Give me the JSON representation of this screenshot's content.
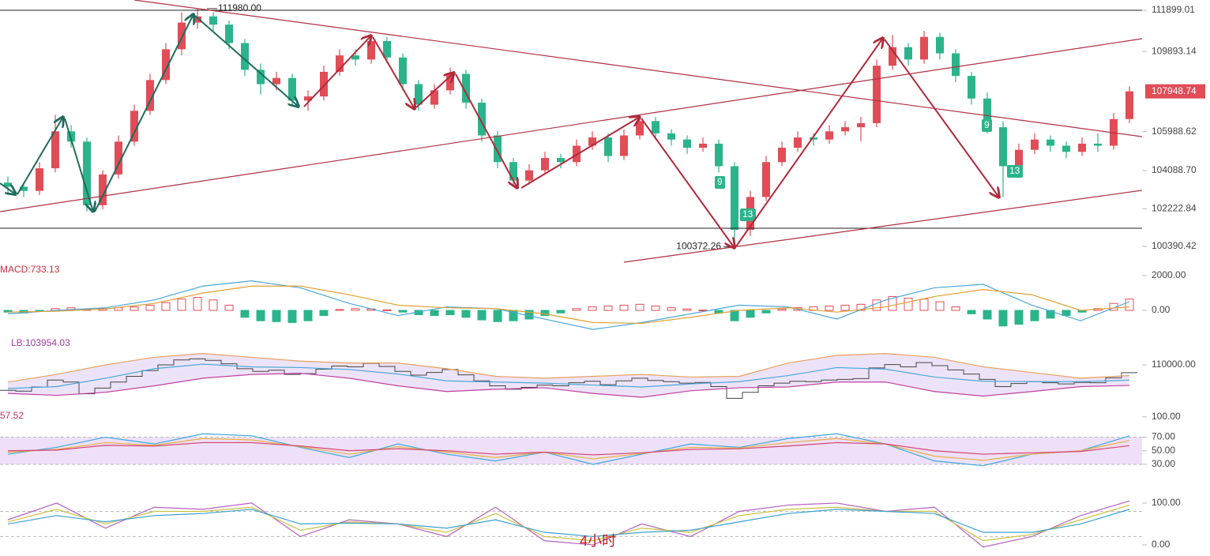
{
  "chart_data": [
    {
      "type": "candlestick",
      "up_color": "#e04d57",
      "down_color": "#2bb48b",
      "ylim": [
        99700,
        112400
      ],
      "yticks": [
        {
          "value": 111899.01,
          "label": "111899.01"
        },
        {
          "value": 109893.14,
          "label": "109893.14"
        },
        {
          "value": 105988.62,
          "label": "105988.62"
        },
        {
          "value": 104088.7,
          "label": "104088.70"
        },
        {
          "value": 102222.84,
          "label": "102222.84"
        },
        {
          "value": 100390.42,
          "label": "100390.42"
        }
      ],
      "last_price": 107948.74,
      "high_label": {
        "value": 111980,
        "label": "111980.00"
      },
      "low_label": {
        "value": 100372.26,
        "label": "100372.26"
      },
      "td_labels": [
        "9",
        "13",
        "9",
        "13"
      ],
      "ohlc": [
        [
          103500,
          103800,
          103000,
          103300
        ],
        [
          103300,
          103500,
          102800,
          103100
        ],
        [
          103100,
          104500,
          102900,
          104200
        ],
        [
          104200,
          106800,
          104000,
          106000
        ],
        [
          106000,
          106300,
          105200,
          105500
        ],
        [
          105500,
          105700,
          102100,
          102400
        ],
        [
          102400,
          104100,
          102200,
          103900
        ],
        [
          103900,
          105800,
          103700,
          105500
        ],
        [
          105500,
          107300,
          105300,
          107000
        ],
        [
          107000,
          108800,
          106800,
          108500
        ],
        [
          108500,
          110300,
          108300,
          110000
        ],
        [
          110000,
          111800,
          109700,
          111300
        ],
        [
          111300,
          111980,
          111000,
          111600
        ],
        [
          111600,
          111800,
          110900,
          111200
        ],
        [
          111200,
          111400,
          110000,
          110300
        ],
        [
          110300,
          110500,
          108700,
          109000
        ],
        [
          109000,
          109300,
          107800,
          108300
        ],
        [
          108300,
          108900,
          108000,
          108600
        ],
        [
          108600,
          108800,
          107200,
          107500
        ],
        [
          107500,
          108000,
          107000,
          107700
        ],
        [
          107700,
          109200,
          107500,
          108900
        ],
        [
          108900,
          110000,
          108700,
          109700
        ],
        [
          109700,
          110000,
          109200,
          109500
        ],
        [
          109500,
          110700,
          109300,
          110400
        ],
        [
          110400,
          110600,
          109300,
          109600
        ],
        [
          109600,
          109800,
          108000,
          108300
        ],
        [
          108300,
          108500,
          107000,
          107300
        ],
        [
          107300,
          108300,
          107100,
          108000
        ],
        [
          108000,
          109100,
          107800,
          108800
        ],
        [
          108800,
          109000,
          107100,
          107400
        ],
        [
          107400,
          107600,
          105500,
          105800
        ],
        [
          105800,
          106000,
          104200,
          104500
        ],
        [
          104500,
          104700,
          103300,
          103600
        ],
        [
          103600,
          104400,
          103400,
          104100
        ],
        [
          104100,
          105000,
          103900,
          104700
        ],
        [
          104700,
          104900,
          104200,
          104500
        ],
        [
          104500,
          105600,
          104300,
          105300
        ],
        [
          105300,
          106000,
          105100,
          105700
        ],
        [
          105700,
          105900,
          104500,
          104800
        ],
        [
          104800,
          106100,
          104600,
          105800
        ],
        [
          105800,
          106800,
          105600,
          106500
        ],
        [
          106500,
          106700,
          105600,
          105900
        ],
        [
          105900,
          106100,
          105300,
          105600
        ],
        [
          105600,
          105800,
          104900,
          105200
        ],
        [
          105200,
          105700,
          105000,
          105400
        ],
        [
          105400,
          105600,
          104000,
          104300
        ],
        [
          104300,
          104500,
          100372.26,
          101200
        ],
        [
          101200,
          103100,
          100900,
          102800
        ],
        [
          102800,
          104800,
          102600,
          104500
        ],
        [
          104500,
          105500,
          104300,
          105200
        ],
        [
          105200,
          106000,
          105000,
          105700
        ],
        [
          105700,
          105900,
          105300,
          105600
        ],
        [
          105600,
          106300,
          105400,
          106000
        ],
        [
          106000,
          106500,
          105800,
          106200
        ],
        [
          106200,
          106700,
          105500,
          106400
        ],
        [
          106400,
          109500,
          106200,
          109200
        ],
        [
          109200,
          110700,
          109000,
          110100
        ],
        [
          110100,
          110300,
          109200,
          109500
        ],
        [
          109500,
          110900,
          109300,
          110600
        ],
        [
          110600,
          110800,
          109500,
          109800
        ],
        [
          109800,
          110000,
          108400,
          108700
        ],
        [
          108700,
          108900,
          107300,
          107600
        ],
        [
          107600,
          107900,
          105900,
          106200
        ],
        [
          106200,
          106500,
          102800,
          104300
        ],
        [
          104300,
          105400,
          104100,
          105100
        ],
        [
          105100,
          105900,
          104900,
          105600
        ],
        [
          105600,
          105800,
          105000,
          105300
        ],
        [
          105300,
          105500,
          104700,
          105000
        ],
        [
          105000,
          105700,
          104800,
          105400
        ],
        [
          105400,
          105900,
          105000,
          105300
        ],
        [
          105300,
          106900,
          105100,
          106600
        ],
        [
          106600,
          108200,
          106400,
          107948.74
        ]
      ]
    },
    {
      "type": "macd",
      "label": "MACD:733.13",
      "ylim": [
        -1230,
        2640
      ],
      "yticks": [
        {
          "value": 2000,
          "label": "2000.00"
        },
        {
          "value": 0,
          "label": "0.00"
        }
      ],
      "up_color": "#e04d57",
      "down_color": "#2bb48b",
      "histogram": [
        -100,
        -150,
        -50,
        100,
        150,
        50,
        100,
        150,
        200,
        300,
        450,
        650,
        750,
        600,
        300,
        -400,
        -600,
        -650,
        -700,
        -600,
        -300,
        50,
        100,
        80,
        30,
        -100,
        -250,
        -300,
        -250,
        -400,
        -550,
        -650,
        -600,
        -500,
        -300,
        -150,
        100,
        200,
        250,
        300,
        350,
        250,
        150,
        80,
        20,
        -150,
        -600,
        -400,
        -150,
        80,
        150,
        200,
        250,
        300,
        350,
        600,
        800,
        700,
        650,
        500,
        200,
        -200,
        -500,
        -900,
        -800,
        -600,
        -450,
        -300,
        -100,
        100,
        400,
        650
      ],
      "series": [
        {
          "color": "#4aa8d8",
          "values": [
            -200,
            0,
            150,
            600,
            1400,
            1700,
            1300,
            400,
            -300,
            200,
            100,
            -500,
            -1100,
            -700,
            -200,
            300,
            200,
            -500,
            600,
            1300,
            1500,
            300,
            -600,
            500
          ]
        },
        {
          "color": "#e0a030",
          "values": [
            -100,
            -50,
            80,
            400,
            1000,
            1400,
            1400,
            900,
            300,
            150,
            100,
            -200,
            -700,
            -750,
            -400,
            0,
            150,
            -100,
            200,
            800,
            1200,
            900,
            0,
            200
          ]
        }
      ]
    },
    {
      "type": "boll",
      "label": "LB:103954.03",
      "ylim": [
        99000,
        117700
      ],
      "yticks": [
        {
          "value": 110000,
          "label": "110000.00"
        }
      ],
      "fill": "#e9dcf6",
      "series": [
        {
          "color": "#e8a060",
          "values": [
            105500,
            107500,
            110000,
            112000,
            113000,
            112000,
            111000,
            110500,
            110500,
            109000,
            107000,
            106500,
            107000,
            107500,
            106800,
            107000,
            110500,
            112500,
            113000,
            112000,
            109500,
            108000,
            106500,
            107200
          ]
        },
        {
          "color": "#4aa8d8",
          "values": [
            103800,
            104300,
            106500,
            109000,
            110200,
            109500,
            109300,
            108800,
            107600,
            105800,
            105500,
            105200,
            104700,
            104200,
            105000,
            105600,
            107200,
            109300,
            108900,
            106800,
            105700,
            105600,
            105600,
            106000
          ]
        },
        {
          "color": "#c040a0",
          "values": [
            102500,
            102000,
            102800,
            104500,
            106500,
            107500,
            107800,
            106500,
            104500,
            103000,
            103600,
            104000,
            102500,
            101500,
            103200,
            104000,
            104200,
            105500,
            105500,
            103000,
            101800,
            103000,
            104300,
            104600
          ]
        }
      ]
    },
    {
      "type": "rsi",
      "label": "57.52",
      "ylim": [
        16,
        109
      ],
      "yticks": [
        {
          "value": 100,
          "label": "100.00"
        },
        {
          "value": 70,
          "label": "70.00"
        },
        {
          "value": 50,
          "label": "50.00"
        },
        {
          "value": 30,
          "label": "30.00"
        }
      ],
      "band": [
        30,
        70
      ],
      "band_color": "#ede0f8",
      "series": [
        {
          "color": "#3aa8e0",
          "values": [
            45,
            55,
            70,
            60,
            75,
            72,
            55,
            40,
            60,
            45,
            35,
            48,
            30,
            45,
            60,
            55,
            68,
            75,
            60,
            35,
            28,
            45,
            50,
            72
          ]
        },
        {
          "color": "#e8b040",
          "values": [
            48,
            52,
            62,
            58,
            68,
            66,
            56,
            45,
            56,
            48,
            40,
            48,
            38,
            46,
            55,
            54,
            62,
            68,
            60,
            42,
            36,
            45,
            50,
            65
          ]
        },
        {
          "color": "#d84070",
          "values": [
            50,
            51,
            58,
            57,
            62,
            62,
            57,
            50,
            53,
            50,
            45,
            48,
            44,
            47,
            52,
            53,
            57,
            62,
            60,
            50,
            45,
            47,
            49,
            57.52
          ]
        }
      ]
    },
    {
      "type": "kdj",
      "timeframe": "4小时",
      "ylim": [
        -19,
        147
      ],
      "yticks": [
        {
          "value": 100,
          "label": "100.00"
        },
        {
          "value": 0,
          "label": "0.00"
        }
      ],
      "guides": [
        80,
        20
      ],
      "series": [
        {
          "color": "#b860c0",
          "values": [
            60,
            100,
            40,
            90,
            85,
            100,
            20,
            60,
            50,
            20,
            90,
            10,
            0,
            50,
            20,
            80,
            95,
            100,
            80,
            90,
            -5,
            20,
            70,
            105
          ]
        },
        {
          "color": "#c8c040",
          "values": [
            55,
            85,
            50,
            80,
            80,
            90,
            35,
            55,
            50,
            30,
            75,
            20,
            10,
            40,
            30,
            70,
            85,
            90,
            80,
            80,
            10,
            25,
            60,
            95
          ]
        },
        {
          "color": "#3aa0d0",
          "values": [
            50,
            70,
            55,
            70,
            75,
            85,
            50,
            52,
            50,
            40,
            60,
            30,
            20,
            30,
            35,
            55,
            75,
            85,
            80,
            75,
            30,
            30,
            50,
            85
          ]
        }
      ]
    }
  ]
}
